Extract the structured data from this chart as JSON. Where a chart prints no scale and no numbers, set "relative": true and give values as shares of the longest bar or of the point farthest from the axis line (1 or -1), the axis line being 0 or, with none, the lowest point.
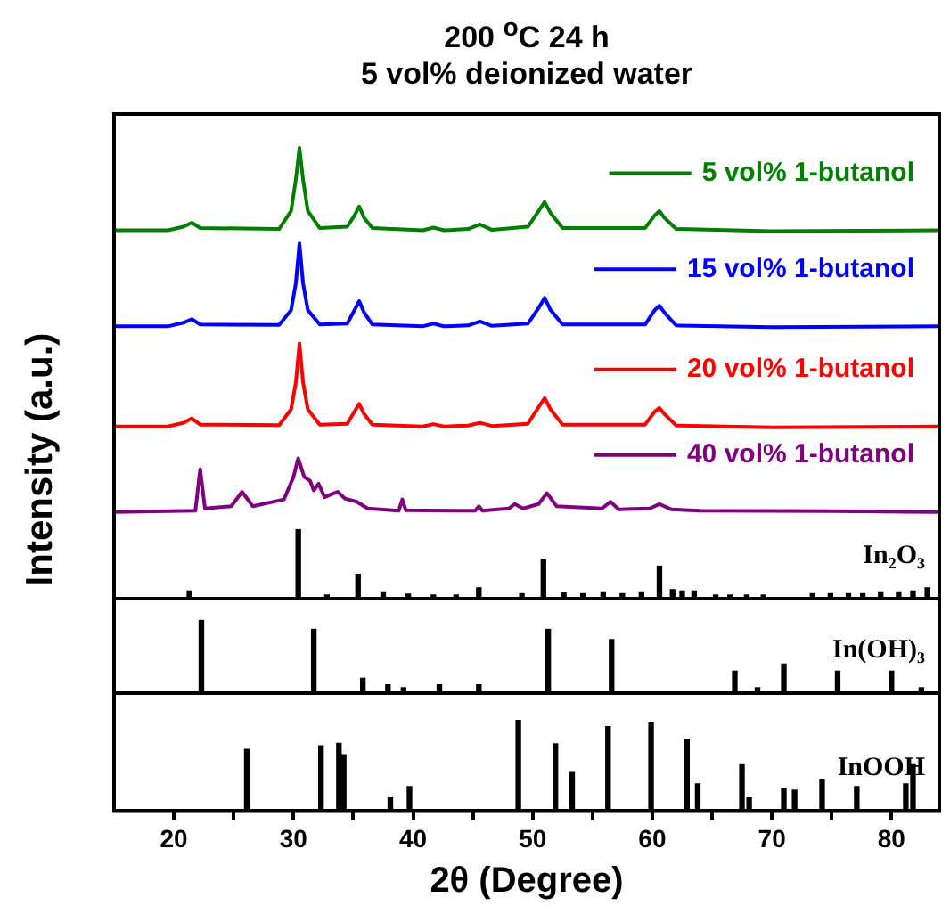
{
  "chart_data": [
    {
      "type": "line",
      "title": "200 $^{o}$C 24 h",
      "subtitle": "5 vol% deionized water",
      "ylabel": "Intensity (a.u.)",
      "relative": true,
      "xlim": [
        15,
        84
      ],
      "tick_labels": false,
      "legend": "right",
      "series": [
        {
          "name": "5 vol% 1-butanol",
          "type": "line",
          "color": "#008000",
          "x": [
            15,
            19.5,
            20.8,
            21.5,
            22.2,
            28.8,
            29.8,
            30.2,
            30.5,
            30.8,
            31.2,
            32.2,
            34.5,
            35.1,
            35.5,
            35.9,
            36.6,
            40.8,
            41.7,
            42.6,
            44.6,
            45.6,
            46.6,
            49.6,
            50.5,
            51.0,
            51.5,
            52.5,
            59.4,
            60.2,
            60.6,
            61.0,
            62.0,
            70,
            84
          ],
          "values": [
            0.817,
            0.817,
            0.825,
            0.834,
            0.822,
            0.82,
            0.86,
            0.93,
            1,
            0.93,
            0.86,
            0.822,
            0.825,
            0.85,
            0.87,
            0.845,
            0.822,
            0.817,
            0.823,
            0.817,
            0.82,
            0.83,
            0.818,
            0.825,
            0.86,
            0.88,
            0.855,
            0.822,
            0.822,
            0.85,
            0.86,
            0.845,
            0.82,
            0.815,
            0.817
          ]
        },
        {
          "name": "15 vol% 1-butanol",
          "type": "line",
          "color": "#0000ff",
          "x": [
            15,
            19.5,
            20.8,
            21.5,
            22.2,
            28.8,
            29.8,
            30.2,
            30.5,
            30.8,
            31.2,
            32.2,
            34.5,
            35.1,
            35.5,
            35.9,
            36.6,
            40.8,
            41.7,
            42.6,
            44.6,
            45.6,
            46.6,
            49.6,
            50.5,
            51.0,
            51.5,
            52.5,
            59.4,
            60.2,
            60.6,
            61.0,
            62.0,
            70,
            84
          ],
          "values": [
            0.604,
            0.604,
            0.612,
            0.62,
            0.608,
            0.607,
            0.64,
            0.7,
            0.788,
            0.7,
            0.64,
            0.608,
            0.61,
            0.64,
            0.66,
            0.635,
            0.608,
            0.604,
            0.61,
            0.604,
            0.606,
            0.615,
            0.605,
            0.61,
            0.645,
            0.667,
            0.64,
            0.608,
            0.608,
            0.64,
            0.65,
            0.635,
            0.606,
            0.602,
            0.604
          ]
        },
        {
          "name": "20 vol% 1-butanol",
          "type": "line",
          "color": "#ff0000",
          "x": [
            15,
            19.5,
            20.8,
            21.5,
            22.2,
            28.8,
            29.8,
            30.2,
            30.5,
            30.8,
            31.2,
            32.2,
            34.5,
            35.1,
            35.5,
            35.9,
            36.6,
            40.8,
            41.7,
            42.6,
            44.6,
            45.6,
            46.6,
            49.6,
            50.5,
            51.0,
            51.5,
            52.5,
            59.4,
            60.2,
            60.6,
            61.0,
            62.0,
            70,
            84
          ],
          "values": [
            0.382,
            0.382,
            0.39,
            0.4,
            0.386,
            0.385,
            0.42,
            0.48,
            0.566,
            0.48,
            0.42,
            0.386,
            0.388,
            0.415,
            0.432,
            0.41,
            0.386,
            0.382,
            0.387,
            0.382,
            0.384,
            0.39,
            0.383,
            0.388,
            0.425,
            0.445,
            0.42,
            0.386,
            0.386,
            0.415,
            0.423,
            0.41,
            0.384,
            0.38,
            0.382
          ]
        },
        {
          "name": "40 vol% 1-butanol",
          "type": "line",
          "color": "#800080",
          "x": [
            15,
            21.8,
            22.2,
            22.6,
            24.8,
            25.7,
            26.6,
            29.2,
            30.0,
            30.4,
            30.9,
            31.4,
            31.7,
            32.1,
            32.6,
            33.2,
            33.7,
            34.3,
            35.3,
            36.2,
            38.8,
            39.1,
            39.4,
            45.2,
            45.5,
            45.8,
            48.0,
            48.5,
            49.2,
            50.5,
            51.2,
            52.0,
            55.8,
            56.5,
            57.2,
            59.8,
            60.6,
            61.6,
            64,
            75,
            84
          ],
          "values": [
            0.192,
            0.195,
            0.287,
            0.2,
            0.205,
            0.237,
            0.205,
            0.22,
            0.27,
            0.311,
            0.27,
            0.261,
            0.24,
            0.255,
            0.225,
            0.232,
            0.237,
            0.222,
            0.215,
            0.2,
            0.195,
            0.22,
            0.196,
            0.195,
            0.205,
            0.195,
            0.2,
            0.21,
            0.2,
            0.21,
            0.234,
            0.205,
            0.2,
            0.215,
            0.198,
            0.2,
            0.21,
            0.198,
            0.195,
            0.194,
            0.192
          ]
        },
        {
          "name": "In₂O₃",
          "type": "bar",
          "color": "#000000",
          "x": [
            21.3,
            30.4,
            32.8,
            35.4,
            37.5,
            39.6,
            41.7,
            43.6,
            45.5,
            49.1,
            50.9,
            52.6,
            54.2,
            55.9,
            57.5,
            59.1,
            60.6,
            61.7,
            62.5,
            63.5,
            65.3,
            66.5,
            67.9,
            69.3,
            73.4,
            74.9,
            76.4,
            77.6,
            79.1,
            80.6,
            81.8,
            83.0
          ],
          "values": [
            0.017,
            0.153,
            0.008,
            0.054,
            0.015,
            0.01,
            0.008,
            0.008,
            0.024,
            0.011,
            0.087,
            0.013,
            0.011,
            0.015,
            0.011,
            0.015,
            0.072,
            0.02,
            0.017,
            0.017,
            0.008,
            0.008,
            0.008,
            0.008,
            0.011,
            0.011,
            0.011,
            0.011,
            0.015,
            0.015,
            0.017,
            0.024
          ]
        }
      ]
    },
    {
      "type": "bar",
      "relative": true,
      "xlim": [
        15,
        84
      ],
      "tick_labels": false,
      "series": [
        {
          "name": "In(OH)₃",
          "type": "bar",
          "color": "#000000",
          "x": [
            22.3,
            31.7,
            35.8,
            37.9,
            39.2,
            42.2,
            45.5,
            51.3,
            56.6,
            66.9,
            68.8,
            71.0,
            75.5,
            80.0,
            82.5
          ],
          "values": [
            1,
            0.877,
            0.204,
            0.115,
            0.074,
            0.115,
            0.115,
            0.877,
            0.737,
            0.302,
            0.074,
            0.4,
            0.302,
            0.302,
            0.074
          ]
        }
      ]
    },
    {
      "type": "bar",
      "relative": true,
      "xlabel": "2θ (Degree)",
      "xlim": [
        15,
        84
      ],
      "xticks": [
        20,
        {
          "value": 25,
          "label": null
        },
        30,
        {
          "value": 35,
          "label": null
        },
        40,
        {
          "value": 45,
          "label": null
        },
        50,
        {
          "value": 55,
          "label": null
        },
        60,
        {
          "value": 65,
          "label": null
        },
        70,
        {
          "value": 75,
          "label": null
        },
        80
      ],
      "series": [
        {
          "name": "InOOH",
          "type": "bar",
          "color": "#000000",
          "x": [
            26.1,
            32.3,
            33.8,
            34.2,
            38.1,
            39.7,
            48.8,
            51.9,
            53.3,
            56.3,
            59.9,
            62.9,
            63.8,
            67.5,
            68.1,
            71.0,
            71.9,
            74.2,
            77.1,
            81.2,
            81.8
          ],
          "values": [
            0.68,
            0.72,
            0.745,
            0.62,
            0.145,
            0.27,
            1,
            0.74,
            0.425,
            0.93,
            0.97,
            0.79,
            0.3,
            0.51,
            0.145,
            0.25,
            0.23,
            0.34,
            0.27,
            0.3,
            0.51
          ]
        }
      ]
    }
  ]
}
